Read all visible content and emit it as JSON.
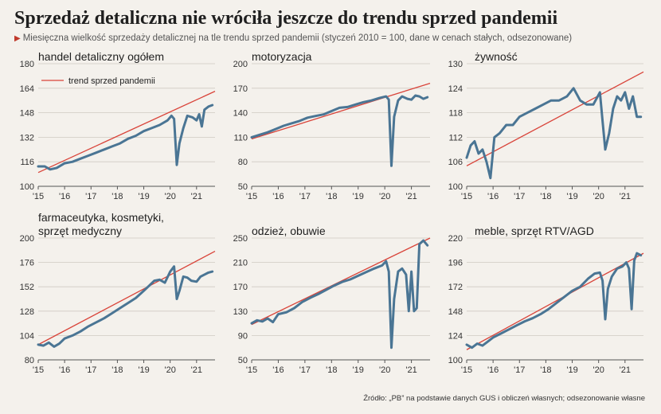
{
  "header": {
    "title": "Sprzedaż detaliczna nie wróciła jeszcze do trendu sprzed pandemii",
    "subtitle": "Miesięczna wielkość sprzedaży detalicznej na tle trendu sprzed pandemii (styczeń 2010 = 100, dane w cenach stałych, odsezonowane)"
  },
  "source": "Źródło: „PB” na podstawie danych GUS i obliczeń własnych; odsezonowanie własne",
  "colors": {
    "series": "#4a7594",
    "trend": "#d9443a",
    "grid": "#cfcac2",
    "background": "#f4f1ec"
  },
  "chart_data": [
    {
      "type": "line",
      "title": "handel detaliczny ogółem",
      "legend": "trend sprzed pandemii",
      "x_ticks": [
        "'15",
        "'16",
        "'17",
        "'18",
        "'19",
        "'20",
        "'21"
      ],
      "xlim": [
        2015.0,
        2021.7
      ],
      "ylim": [
        100,
        180
      ],
      "y_ticks": [
        100,
        116,
        132,
        148,
        164,
        180
      ],
      "trend": [
        [
          2015.0,
          109
        ],
        [
          2021.7,
          162
        ]
      ],
      "series": [
        {
          "name": "sprzedaż",
          "points": [
            [
              2015.0,
              113
            ],
            [
              2015.25,
              113
            ],
            [
              2015.45,
              111
            ],
            [
              2015.7,
              112
            ],
            [
              2016.0,
              115
            ],
            [
              2016.3,
              116
            ],
            [
              2016.6,
              118
            ],
            [
              2016.9,
              120
            ],
            [
              2017.2,
              122
            ],
            [
              2017.5,
              124
            ],
            [
              2017.8,
              126
            ],
            [
              2018.1,
              128
            ],
            [
              2018.4,
              131
            ],
            [
              2018.7,
              133
            ],
            [
              2019.0,
              136
            ],
            [
              2019.3,
              138
            ],
            [
              2019.6,
              140
            ],
            [
              2019.9,
              143
            ],
            [
              2020.05,
              146
            ],
            [
              2020.15,
              144
            ],
            [
              2020.25,
              114
            ],
            [
              2020.35,
              128
            ],
            [
              2020.5,
              138
            ],
            [
              2020.65,
              146
            ],
            [
              2020.85,
              145
            ],
            [
              2021.0,
              143
            ],
            [
              2021.1,
              147
            ],
            [
              2021.2,
              139
            ],
            [
              2021.3,
              150
            ],
            [
              2021.45,
              152
            ],
            [
              2021.6,
              153
            ]
          ]
        }
      ]
    },
    {
      "type": "line",
      "title": "motoryzacja",
      "x_ticks": [
        "'15",
        "'16",
        "'17",
        "'18",
        "'19",
        "'20",
        "'21"
      ],
      "xlim": [
        2015.0,
        2021.7
      ],
      "ylim": [
        50,
        200
      ],
      "y_ticks": [
        50,
        80,
        110,
        140,
        170,
        200
      ],
      "trend": [
        [
          2015.0,
          108
        ],
        [
          2021.7,
          176
        ]
      ],
      "series": [
        {
          "name": "sprzedaż",
          "points": [
            [
              2015.0,
              110
            ],
            [
              2015.3,
              113
            ],
            [
              2015.6,
              116
            ],
            [
              2015.9,
              120
            ],
            [
              2016.2,
              124
            ],
            [
              2016.5,
              127
            ],
            [
              2016.8,
              130
            ],
            [
              2017.1,
              134
            ],
            [
              2017.4,
              136
            ],
            [
              2017.7,
              138
            ],
            [
              2018.0,
              142
            ],
            [
              2018.3,
              146
            ],
            [
              2018.6,
              147
            ],
            [
              2018.9,
              150
            ],
            [
              2019.2,
              153
            ],
            [
              2019.5,
              155
            ],
            [
              2019.8,
              158
            ],
            [
              2020.05,
              160
            ],
            [
              2020.15,
              156
            ],
            [
              2020.25,
              75
            ],
            [
              2020.35,
              135
            ],
            [
              2020.5,
              155
            ],
            [
              2020.65,
              160
            ],
            [
              2020.85,
              157
            ],
            [
              2021.0,
              156
            ],
            [
              2021.15,
              161
            ],
            [
              2021.3,
              160
            ],
            [
              2021.45,
              157
            ],
            [
              2021.6,
              159
            ]
          ]
        }
      ]
    },
    {
      "type": "line",
      "title": "żywność",
      "x_ticks": [
        "'15",
        "'16",
        "'17",
        "'18",
        "'19",
        "'20",
        "'21"
      ],
      "xlim": [
        2015.0,
        2021.7
      ],
      "ylim": [
        100,
        130
      ],
      "y_ticks": [
        100,
        106,
        112,
        118,
        124,
        130
      ],
      "trend": [
        [
          2015.0,
          105
        ],
        [
          2021.7,
          128
        ]
      ],
      "series": [
        {
          "name": "sprzedaż",
          "points": [
            [
              2015.0,
              107
            ],
            [
              2015.15,
              110
            ],
            [
              2015.3,
              111
            ],
            [
              2015.45,
              108
            ],
            [
              2015.6,
              109
            ],
            [
              2015.75,
              106
            ],
            [
              2015.9,
              102
            ],
            [
              2016.05,
              112
            ],
            [
              2016.25,
              113
            ],
            [
              2016.5,
              115
            ],
            [
              2016.75,
              115
            ],
            [
              2017.0,
              117
            ],
            [
              2017.3,
              118
            ],
            [
              2017.6,
              119
            ],
            [
              2017.9,
              120
            ],
            [
              2018.2,
              121
            ],
            [
              2018.5,
              121
            ],
            [
              2018.8,
              122
            ],
            [
              2019.05,
              124
            ],
            [
              2019.3,
              121
            ],
            [
              2019.55,
              120
            ],
            [
              2019.8,
              120
            ],
            [
              2020.05,
              123
            ],
            [
              2020.15,
              116
            ],
            [
              2020.25,
              109
            ],
            [
              2020.4,
              113
            ],
            [
              2020.55,
              119
            ],
            [
              2020.7,
              122
            ],
            [
              2020.85,
              121
            ],
            [
              2021.0,
              123
            ],
            [
              2021.15,
              119
            ],
            [
              2021.3,
              122
            ],
            [
              2021.45,
              117
            ],
            [
              2021.6,
              117
            ]
          ]
        }
      ]
    },
    {
      "type": "line",
      "title": "farmaceutyka, kosmetyki, sprzęt medyczny",
      "x_ticks": [
        "'15",
        "'16",
        "'17",
        "'18",
        "'19",
        "'20",
        "'21"
      ],
      "xlim": [
        2015.0,
        2021.7
      ],
      "ylim": [
        80,
        200
      ],
      "y_ticks": [
        80,
        104,
        128,
        152,
        176,
        200
      ],
      "trend": [
        [
          2015.0,
          95
        ],
        [
          2021.7,
          187
        ]
      ],
      "series": [
        {
          "name": "sprzedaż",
          "points": [
            [
              2015.0,
              95
            ],
            [
              2015.2,
              94
            ],
            [
              2015.4,
              97
            ],
            [
              2015.6,
              93
            ],
            [
              2015.8,
              96
            ],
            [
              2016.0,
              101
            ],
            [
              2016.3,
              104
            ],
            [
              2016.6,
              108
            ],
            [
              2016.9,
              113
            ],
            [
              2017.2,
              117
            ],
            [
              2017.5,
              121
            ],
            [
              2017.8,
              126
            ],
            [
              2018.1,
              131
            ],
            [
              2018.4,
              136
            ],
            [
              2018.7,
              141
            ],
            [
              2019.0,
              148
            ],
            [
              2019.2,
              153
            ],
            [
              2019.4,
              158
            ],
            [
              2019.6,
              159
            ],
            [
              2019.8,
              156
            ],
            [
              2020.0,
              167
            ],
            [
              2020.15,
              172
            ],
            [
              2020.25,
              140
            ],
            [
              2020.35,
              148
            ],
            [
              2020.5,
              162
            ],
            [
              2020.65,
              161
            ],
            [
              2020.8,
              158
            ],
            [
              2021.0,
              157
            ],
            [
              2021.15,
              162
            ],
            [
              2021.3,
              164
            ],
            [
              2021.45,
              166
            ],
            [
              2021.6,
              167
            ]
          ]
        }
      ]
    },
    {
      "type": "line",
      "title": "odzież, obuwie",
      "x_ticks": [
        "'15",
        "'16",
        "'17",
        "'18",
        "'19",
        "'20",
        "'21"
      ],
      "xlim": [
        2015.0,
        2021.7
      ],
      "ylim": [
        50,
        250
      ],
      "y_ticks": [
        50,
        90,
        130,
        170,
        210,
        250
      ],
      "trend": [
        [
          2015.0,
          108
        ],
        [
          2021.7,
          250
        ]
      ],
      "series": [
        {
          "name": "sprzedaż",
          "points": [
            [
              2015.0,
              110
            ],
            [
              2015.2,
              115
            ],
            [
              2015.4,
              113
            ],
            [
              2015.6,
              118
            ],
            [
              2015.8,
              112
            ],
            [
              2016.0,
              125
            ],
            [
              2016.3,
              128
            ],
            [
              2016.6,
              135
            ],
            [
              2016.9,
              145
            ],
            [
              2017.2,
              152
            ],
            [
              2017.5,
              158
            ],
            [
              2017.8,
              165
            ],
            [
              2018.1,
              172
            ],
            [
              2018.4,
              178
            ],
            [
              2018.7,
              182
            ],
            [
              2019.0,
              188
            ],
            [
              2019.3,
              194
            ],
            [
              2019.6,
              200
            ],
            [
              2019.9,
              205
            ],
            [
              2020.05,
              212
            ],
            [
              2020.15,
              195
            ],
            [
              2020.25,
              70
            ],
            [
              2020.35,
              150
            ],
            [
              2020.5,
              195
            ],
            [
              2020.65,
              200
            ],
            [
              2020.8,
              190
            ],
            [
              2020.9,
              130
            ],
            [
              2021.0,
              195
            ],
            [
              2021.1,
              130
            ],
            [
              2021.2,
              135
            ],
            [
              2021.3,
              240
            ],
            [
              2021.45,
              246
            ],
            [
              2021.6,
              238
            ]
          ]
        }
      ]
    },
    {
      "type": "line",
      "title": "meble, sprzęt RTV/AGD",
      "x_ticks": [
        "'15",
        "'16",
        "'17",
        "'18",
        "'19",
        "'20",
        "'21"
      ],
      "xlim": [
        2015.0,
        2021.7
      ],
      "ylim": [
        100,
        220
      ],
      "y_ticks": [
        100,
        124,
        148,
        172,
        196,
        220
      ],
      "trend": [
        [
          2015.0,
          110
        ],
        [
          2021.7,
          205
        ]
      ],
      "series": [
        {
          "name": "sprzedaż",
          "points": [
            [
              2015.0,
              115
            ],
            [
              2015.2,
              112
            ],
            [
              2015.4,
              116
            ],
            [
              2015.6,
              114
            ],
            [
              2015.8,
              118
            ],
            [
              2016.0,
              122
            ],
            [
              2016.3,
              126
            ],
            [
              2016.6,
              130
            ],
            [
              2016.9,
              134
            ],
            [
              2017.2,
              138
            ],
            [
              2017.5,
              141
            ],
            [
              2017.8,
              145
            ],
            [
              2018.1,
              150
            ],
            [
              2018.4,
              156
            ],
            [
              2018.7,
              162
            ],
            [
              2019.0,
              168
            ],
            [
              2019.3,
              172
            ],
            [
              2019.6,
              180
            ],
            [
              2019.85,
              185
            ],
            [
              2020.05,
              186
            ],
            [
              2020.15,
              178
            ],
            [
              2020.25,
              140
            ],
            [
              2020.35,
              170
            ],
            [
              2020.5,
              182
            ],
            [
              2020.7,
              190
            ],
            [
              2020.9,
              192
            ],
            [
              2021.05,
              196
            ],
            [
              2021.15,
              190
            ],
            [
              2021.25,
              150
            ],
            [
              2021.35,
              198
            ],
            [
              2021.45,
              205
            ],
            [
              2021.6,
              203
            ]
          ]
        }
      ]
    }
  ]
}
